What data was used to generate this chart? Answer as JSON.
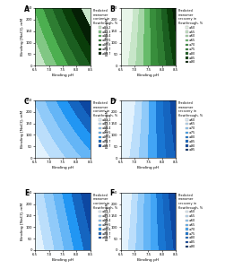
{
  "panels": [
    {
      "label": "A",
      "title": "Predicted\nmonomer\ncontent in\nflowthrough, %",
      "legend_labels": [
        "≤99.2",
        "≤99.3",
        "≤99.4",
        "≤99.5",
        "≤99.6",
        "≤99.7",
        "≥99.7"
      ],
      "colormap": "green",
      "type": "monomer_content",
      "resin": "nuvia"
    },
    {
      "label": "B",
      "title": "Predicted\nmonomer\nrecovery in\nflowthrough, %",
      "legend_labels": [
        "≤50",
        "≤55",
        "≤60",
        "≤65",
        "≤70",
        "≤75",
        "≤80",
        "≤85",
        "≤90"
      ],
      "colormap": "green",
      "type": "monomer_recovery",
      "resin": "nuvia"
    },
    {
      "label": "C",
      "title": "Predicted\nmonomer\ncontent in\nflowthrough, %",
      "legend_labels": [
        "≤99.2",
        "≤99.3",
        "≤99.4",
        "≤99.5",
        "≤99.6",
        "≤99.7",
        "≥99.7"
      ],
      "colormap": "blue",
      "type": "monomer_content",
      "resin": "capto"
    },
    {
      "label": "D",
      "title": "Predicted\nmonomer\nrecovery in\nflowthrough, %",
      "legend_labels": [
        "≤60",
        "≤65",
        "≤70",
        "≤75",
        "≤80",
        "≤85",
        "≤90",
        "≤95"
      ],
      "colormap": "blue",
      "type": "monomer_recovery",
      "resin": "capto"
    },
    {
      "label": "E",
      "title": "Predicted\nmonomer\ncontent in\nflowthrough, %",
      "legend_labels": [
        "≤99.2",
        "≤99.3",
        "≤99.4",
        "≤99.5",
        "≤99.6",
        "≤99.7",
        "≥99.7"
      ],
      "colormap": "blue",
      "type": "monomer_content",
      "resin": "impres"
    },
    {
      "label": "F",
      "title": "Predicted\nmonomer\nrecovery in\nflowthrough, %",
      "legend_labels": [
        "≤50",
        "≤55",
        "≤60",
        "≤65",
        "≤70",
        "≤75",
        "≤80",
        "≤85",
        "≤90"
      ],
      "colormap": "blue",
      "type": "monomer_recovery",
      "resin": "impres"
    }
  ],
  "xlabel": "Binding pH",
  "ylabel": "Binding [NaCl], mM",
  "green_content_colors": [
    "#c8e6c9",
    "#81c784",
    "#4caf50",
    "#2e7d32",
    "#1b5e20",
    "#0a3d0a",
    "#051f05"
  ],
  "green_recovery_colors": [
    "#e8f5e9",
    "#c8e6c9",
    "#a5d6a7",
    "#66bb6a",
    "#388e3c",
    "#2e7d32",
    "#1b5e20",
    "#0a3d0a",
    "#051f05"
  ],
  "blue_content_colors": [
    "#e3f2fd",
    "#bbdefb",
    "#90caf9",
    "#64b5f6",
    "#2196f3",
    "#1565c0",
    "#0d47a1"
  ],
  "blue_recovery_capto_colors": [
    "#e3f2fd",
    "#bbdefb",
    "#90caf9",
    "#42a5f5",
    "#1976d2",
    "#1565c0",
    "#0d47a1",
    "#082f6b"
  ],
  "blue_recovery_impres_colors": [
    "#e3f2fd",
    "#bbdefb",
    "#90caf9",
    "#64b5f6",
    "#42a5f5",
    "#1976d2",
    "#1565c0",
    "#0d47a1",
    "#082f6b"
  ],
  "fig_bg": "#ffffff"
}
